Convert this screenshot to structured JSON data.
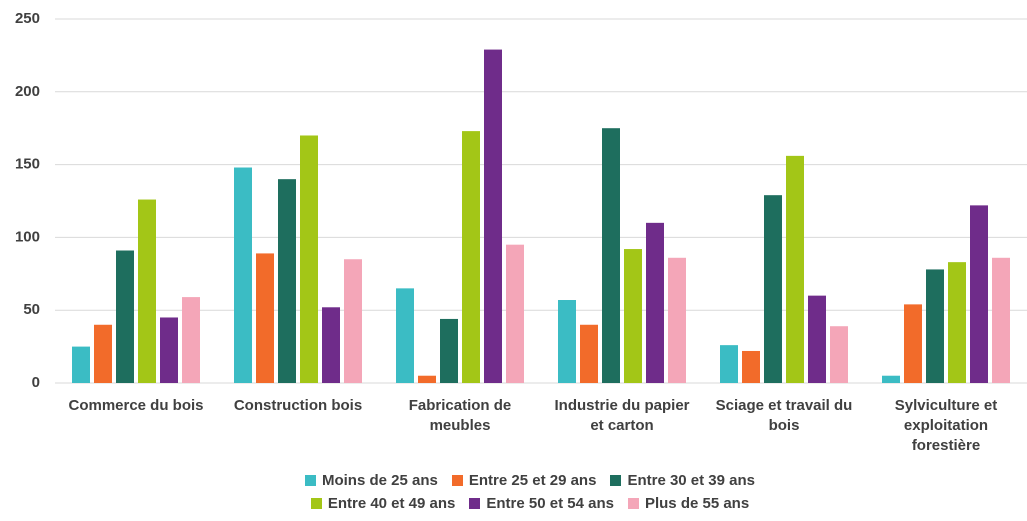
{
  "chart_data": {
    "type": "bar",
    "categories": [
      "Commerce du bois",
      "Construction bois",
      "Fabrication de meubles",
      "Industrie du papier et carton",
      "Sciage et travail du bois",
      "Sylviculture et exploitation forestière"
    ],
    "series": [
      {
        "name": "Moins de 25 ans",
        "color": "#3bbcc4",
        "values": [
          25,
          148,
          65,
          57,
          26,
          5
        ]
      },
      {
        "name": "Entre 25 et 29 ans",
        "color": "#f26b2a",
        "values": [
          40,
          89,
          5,
          40,
          22,
          54
        ]
      },
      {
        "name": "Entre 30 et 39 ans",
        "color": "#1e6e5e",
        "values": [
          91,
          140,
          44,
          175,
          129,
          78
        ]
      },
      {
        "name": "Entre 40 et 49 ans",
        "color": "#a3c617",
        "values": [
          126,
          170,
          173,
          92,
          156,
          83
        ]
      },
      {
        "name": "Entre 50 et 54 ans",
        "color": "#6f2c8a",
        "values": [
          45,
          52,
          229,
          110,
          60,
          122
        ]
      },
      {
        "name": "Plus de 55 ans",
        "color": "#f4a6b8",
        "values": [
          59,
          85,
          95,
          86,
          39,
          86
        ]
      }
    ],
    "ylim": [
      0,
      250
    ],
    "yticks": [
      0,
      50,
      100,
      150,
      200,
      250
    ],
    "grid": true,
    "legend": "bottom"
  }
}
